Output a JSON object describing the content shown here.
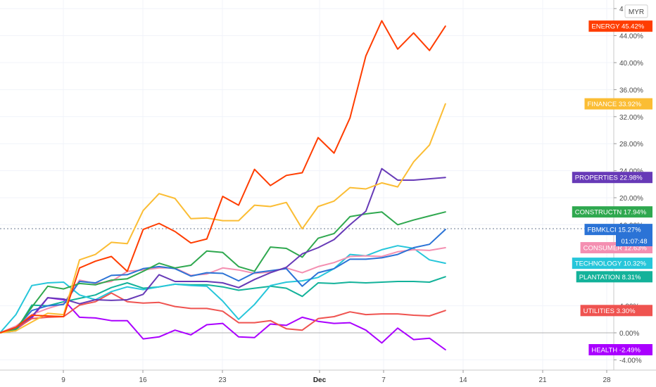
{
  "currency_label": "MYR",
  "chart_data": {
    "type": "line",
    "x_ticks": [
      "9",
      "16",
      "23",
      "Dec",
      "7",
      "14",
      "21",
      "28"
    ],
    "y_ticks": [
      "4",
      "44.00%",
      "40.00%",
      "36.00%",
      "32.00%",
      "28.00%",
      "24.00%",
      "20.00%",
      "16.00%",
      "4.00%",
      "0.00%",
      "-4.00%"
    ],
    "ylim": [
      -4.5,
      48
    ],
    "crosshair_time": "01:07:48",
    "series": [
      {
        "name": "ENERGY",
        "value_label": "45.42%",
        "color": "#ff3d00",
        "values": [
          0,
          0.8,
          2.6,
          2.5,
          2.4,
          9.6,
          10.6,
          11.3,
          9.1,
          15.3,
          16.2,
          15.0,
          13.3,
          13.9,
          20.2,
          18.9,
          24.2,
          21.8,
          23.3,
          23.7,
          28.9,
          26.6,
          31.8,
          41.0,
          46.2,
          42.0,
          44.4,
          41.8,
          45.4
        ]
      },
      {
        "name": "FINANCE",
        "value_label": "33.92%",
        "color": "#fbbd34",
        "values": [
          0,
          0.3,
          1.6,
          2.9,
          2.7,
          10.8,
          11.6,
          13.4,
          13.2,
          18.1,
          20.6,
          19.9,
          16.9,
          17.0,
          16.6,
          16.6,
          18.9,
          18.7,
          19.3,
          15.4,
          18.7,
          19.5,
          21.5,
          21.3,
          22.2,
          21.6,
          25.3,
          27.8,
          33.9
        ]
      },
      {
        "name": "PROPERTIES",
        "value_label": "22.98%",
        "color": "#673ab7",
        "values": [
          0,
          0.8,
          2.4,
          5.2,
          5.0,
          4.3,
          4.9,
          4.8,
          4.9,
          5.7,
          8.6,
          7.6,
          7.6,
          7.6,
          7.4,
          6.7,
          7.9,
          8.9,
          9.7,
          11.7,
          12.6,
          13.8,
          16.0,
          18.0,
          24.3,
          22.6,
          22.6,
          22.8,
          23.0
        ]
      },
      {
        "name": "CONSTRUCTN",
        "value_label": "17.94%",
        "color": "#2fa84f",
        "values": [
          0,
          0.5,
          3.8,
          6.9,
          6.5,
          7.3,
          7.1,
          7.8,
          8.0,
          9.1,
          10.3,
          9.6,
          10.0,
          12.1,
          11.9,
          9.8,
          9.1,
          12.7,
          12.5,
          11.2,
          14.0,
          14.7,
          17.2,
          17.6,
          17.9,
          16.0,
          16.7,
          17.3,
          17.9
        ]
      },
      {
        "name": "FBMKLCI",
        "value_label": "15.27%",
        "color": "#2b73d6",
        "values": [
          0,
          0.7,
          3.3,
          4.0,
          4.2,
          7.6,
          7.4,
          8.5,
          8.6,
          9.5,
          9.8,
          9.5,
          8.4,
          8.9,
          8.8,
          7.7,
          8.9,
          9.2,
          9.5,
          6.9,
          8.9,
          9.5,
          10.9,
          10.9,
          11.1,
          11.6,
          12.6,
          13.1,
          15.3
        ]
      },
      {
        "name": "CONSUMER",
        "value_label": "12.63%",
        "color": "#f48fb1",
        "values": [
          0,
          1.0,
          2.7,
          3.6,
          4.3,
          7.8,
          7.3,
          7.6,
          9.1,
          9.3,
          9.6,
          9.6,
          8.5,
          8.7,
          9.6,
          9.3,
          8.8,
          9.0,
          9.6,
          8.9,
          9.8,
          10.4,
          11.3,
          11.4,
          11.3,
          12.0,
          12.3,
          12.2,
          12.6
        ]
      },
      {
        "name": "TECHNOLOGY",
        "value_label": "10.32%",
        "color": "#26c6da",
        "values": [
          0,
          2.7,
          7.0,
          7.4,
          7.5,
          5.6,
          4.9,
          6.1,
          6.8,
          6.4,
          6.8,
          7.2,
          7.0,
          6.9,
          4.7,
          2.0,
          4.2,
          7.0,
          7.5,
          7.7,
          8.2,
          9.5,
          11.6,
          11.4,
          12.3,
          12.9,
          12.5,
          10.8,
          10.3
        ]
      },
      {
        "name": "PLANTATION",
        "value_label": "8.31%",
        "color": "#13b29a",
        "values": [
          0,
          0.3,
          4.1,
          4.0,
          4.6,
          5.1,
          5.6,
          6.7,
          7.4,
          6.6,
          6.8,
          7.2,
          7.1,
          7.1,
          6.8,
          6.3,
          6.6,
          6.9,
          6.6,
          5.4,
          7.4,
          7.3,
          7.5,
          7.4,
          7.5,
          7.6,
          7.6,
          7.5,
          8.3
        ]
      },
      {
        "name": "UTILITIES",
        "value_label": "3.30%",
        "color": "#ef5350",
        "values": [
          0,
          0.6,
          2.1,
          2.3,
          2.4,
          4.1,
          4.6,
          5.9,
          4.6,
          4.4,
          4.5,
          3.9,
          3.6,
          3.6,
          3.2,
          1.5,
          1.5,
          1.8,
          0.6,
          0.4,
          2.1,
          2.4,
          3.1,
          2.7,
          2.8,
          2.8,
          2.6,
          2.5,
          3.3
        ]
      },
      {
        "name": "HEALTH",
        "value_label": "-2.49%",
        "color": "#aa00ff",
        "values": [
          0,
          0.5,
          2.2,
          5.2,
          4.9,
          2.3,
          2.2,
          1.8,
          1.8,
          -0.9,
          -0.6,
          0.4,
          -0.3,
          1.2,
          1.4,
          -0.6,
          -0.7,
          1.3,
          1.1,
          2.3,
          1.7,
          1.4,
          1.5,
          0.4,
          -1.5,
          0.7,
          -1.0,
          -0.8,
          -2.5
        ]
      }
    ]
  }
}
